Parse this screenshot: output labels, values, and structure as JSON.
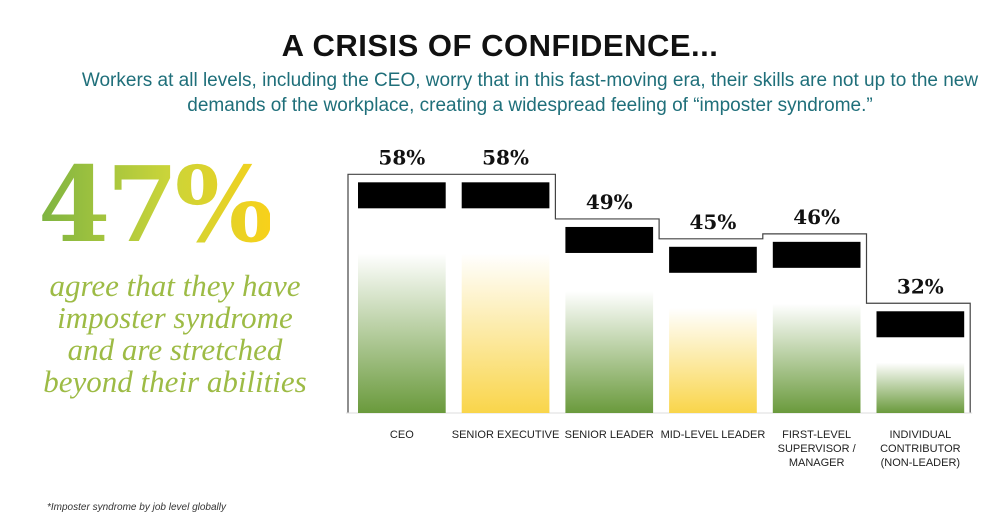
{
  "title": "A CRISIS OF CONFIDENCE...",
  "subtitle": "Workers at all levels, including the CEO, worry that in this fast-moving era, their skills are not up to the new demands of the workplace, creating a widespread feeling of “imposter syndrome.”",
  "headline_stat": "47%",
  "headline_text": "agree that they have imposter syndrome and are stretched beyond their abilities",
  "footnote": "*Imposter syndrome by job level globally",
  "colors": {
    "green": "#6a9a3c",
    "yellow": "#f9d54a",
    "subtitle": "#1f6f7a"
  },
  "chart_data": {
    "type": "bar",
    "categories": [
      "CEO",
      "SENIOR EXECUTIVE",
      "SENIOR LEADER",
      "MID-LEVEL LEADER",
      "FIRST-LEVEL SUPERVISOR / MANAGER",
      "INDIVIDUAL CONTRIBUTOR (NON-LEADER)"
    ],
    "values": [
      58,
      58,
      49,
      45,
      46,
      32
    ],
    "data_labels": [
      "58%",
      "58%",
      "49%",
      "45%",
      "46%",
      "32%"
    ],
    "bar_colors": [
      "green",
      "yellow",
      "green",
      "yellow",
      "green",
      "green"
    ],
    "unit": "%"
  }
}
